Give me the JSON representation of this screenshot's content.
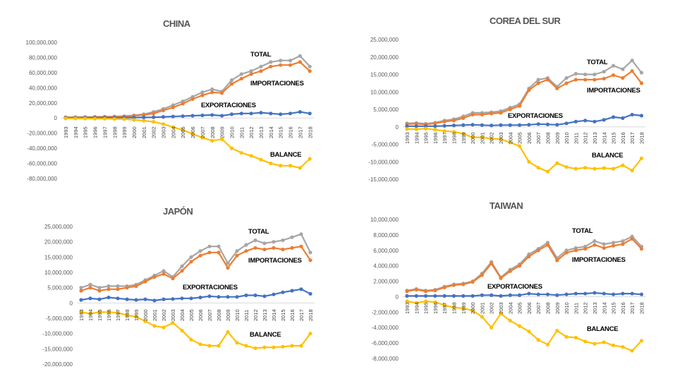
{
  "colors": {
    "total": "#a6a6a6",
    "importaciones": "#ed7d31",
    "exportaciones": "#4472c4",
    "balance": "#ffc000",
    "axis": "#d9d9d9"
  },
  "chart_data": [
    {
      "type": "line",
      "title": "CHINA",
      "x": [
        "1993",
        "1994",
        "1995",
        "1996",
        "1997",
        "1998",
        "1999",
        "2000",
        "2001",
        "2002",
        "2003",
        "2004",
        "2005",
        "2006",
        "2007",
        "2008",
        "2009",
        "2010",
        "2011",
        "2012",
        "2013",
        "2014",
        "2015",
        "2016",
        "2017",
        "2018"
      ],
      "yticks": [
        100000000,
        80000000,
        60000000,
        40000000,
        20000000,
        0,
        -20000000,
        -40000000,
        -60000000,
        -80000000
      ],
      "ytick_labels": [
        "100,000,000",
        "80,000,000",
        "60,000,000",
        "40,000,000",
        "20,000,000",
        "0",
        "-20,000,000",
        "-40,000,000",
        "-60,000,000",
        "-80,000,000"
      ],
      "ylim": [
        -80000000,
        100000000
      ],
      "series": [
        {
          "key": "total",
          "name": "TOTAL",
          "values": [
            1000000,
            1100000,
            1300000,
            1500000,
            1800000,
            2000000,
            2500000,
            3500000,
            5000000,
            8000000,
            12000000,
            17000000,
            22000000,
            28000000,
            34000000,
            38000000,
            35000000,
            50000000,
            58000000,
            62000000,
            68000000,
            74000000,
            76000000,
            76000000,
            82000000,
            68000000
          ]
        },
        {
          "key": "importaciones",
          "name": "IMPORTACIONES",
          "values": [
            800000,
            900000,
            1000000,
            1200000,
            1400000,
            1600000,
            2000000,
            3000000,
            4000000,
            6000000,
            10000000,
            14000000,
            19000000,
            25000000,
            30000000,
            34000000,
            33000000,
            45000000,
            52000000,
            58000000,
            62000000,
            68000000,
            70000000,
            70000000,
            74000000,
            62000000
          ]
        },
        {
          "key": "exportaciones",
          "name": "EXPORTACIONES",
          "values": [
            200000,
            200000,
            300000,
            300000,
            400000,
            400000,
            500000,
            600000,
            800000,
            1000000,
            1500000,
            2000000,
            2500000,
            3000000,
            3500000,
            4000000,
            3000000,
            5000000,
            6000000,
            6000000,
            7000000,
            6000000,
            5000000,
            6000000,
            8000000,
            6000000
          ]
        },
        {
          "key": "balance",
          "name": "BALANCE",
          "values": [
            -500000,
            -600000,
            -700000,
            -900000,
            -1000000,
            -1200000,
            -1500000,
            -2500000,
            -3500000,
            -5000000,
            -8000000,
            -12000000,
            -16000000,
            -21000000,
            -26000000,
            -30000000,
            -28000000,
            -40000000,
            -46000000,
            -50000000,
            -55000000,
            -60000000,
            -63000000,
            -63000000,
            -66000000,
            -54000000
          ]
        }
      ]
    },
    {
      "type": "line",
      "title": "COREA DEL SUR",
      "x": [
        "1993",
        "1994",
        "1995",
        "1996",
        "1997",
        "1998",
        "1999",
        "2000",
        "2001",
        "2002",
        "2003",
        "2004",
        "2005",
        "2006",
        "2007",
        "2008",
        "2009",
        "2010",
        "2011",
        "2012",
        "2013",
        "2014",
        "2015",
        "2016",
        "2017",
        "2018"
      ],
      "yticks": [
        25000000,
        20000000,
        15000000,
        10000000,
        5000000,
        0,
        -5000000,
        -10000000,
        -15000000
      ],
      "ytick_labels": [
        "25,000,000",
        "20,000,000",
        "15,000,000",
        "10,000,000",
        "5,000,000",
        "0",
        "-5,000,000",
        "-10,000,000",
        "-15,000,000"
      ],
      "ylim": [
        -15000000,
        25000000
      ],
      "series": [
        {
          "key": "total",
          "name": "TOTAL",
          "values": [
            1000000,
            1100000,
            900000,
            1200000,
            1800000,
            2200000,
            3000000,
            4000000,
            4000000,
            4200000,
            4500000,
            5500000,
            6500000,
            11000000,
            13500000,
            14000000,
            11500000,
            14000000,
            15200000,
            15000000,
            15000000,
            15800000,
            17500000,
            16500000,
            19000000,
            15500000
          ]
        },
        {
          "key": "importaciones",
          "name": "IMPORTACIONES",
          "values": [
            800000,
            900000,
            700000,
            1000000,
            1500000,
            1800000,
            2500000,
            3500000,
            3500000,
            3800000,
            4000000,
            5000000,
            6000000,
            10500000,
            12500000,
            13500000,
            11000000,
            12500000,
            13500000,
            13500000,
            13500000,
            13800000,
            14800000,
            14000000,
            16000000,
            12500000
          ]
        },
        {
          "key": "exportaciones",
          "name": "EXPORTACIONES",
          "values": [
            200000,
            200000,
            200000,
            200000,
            300000,
            400000,
            500000,
            600000,
            500000,
            400000,
            500000,
            500000,
            500000,
            600000,
            800000,
            700000,
            600000,
            1000000,
            1500000,
            1800000,
            1500000,
            2000000,
            2800000,
            2500000,
            3500000,
            3200000
          ]
        },
        {
          "key": "balance",
          "name": "BALANCE",
          "values": [
            -600000,
            -700000,
            -500000,
            -800000,
            -1200000,
            -1400000,
            -2000000,
            -3000000,
            -3000000,
            -3400000,
            -3500000,
            -4500000,
            -5500000,
            -10000000,
            -11700000,
            -12800000,
            -10400000,
            -11500000,
            -12000000,
            -11700000,
            -12000000,
            -11800000,
            -12000000,
            -11000000,
            -12500000,
            -9000000
          ]
        }
      ]
    },
    {
      "type": "line",
      "title": "JAPÓN",
      "x": [
        "1993",
        "1994",
        "1995",
        "1996",
        "1997",
        "1998",
        "1999",
        "2000",
        "2001",
        "2002",
        "2003",
        "2004",
        "2005",
        "2006",
        "2007",
        "2008",
        "2009",
        "2010",
        "2011",
        "2012",
        "2013",
        "2014",
        "2015",
        "2016",
        "2017",
        "2018"
      ],
      "yticks": [
        25000000,
        20000000,
        15000000,
        10000000,
        5000000,
        0,
        -5000000,
        -10000000,
        -15000000,
        -20000000
      ],
      "ytick_labels": [
        "25,000,000",
        "20,000,000",
        "15,000,000",
        "10,000,000",
        "5,000,000",
        "0",
        "-5,000,000",
        "-10,000,000",
        "-15,000,000",
        "-20,000,000"
      ],
      "ylim": [
        -20000000,
        25000000
      ],
      "series": [
        {
          "key": "total",
          "name": "TOTAL",
          "values": [
            5000000,
            6000000,
            5000000,
            5500000,
            5500000,
            5500000,
            6000000,
            7500000,
            9000000,
            10500000,
            8500000,
            12000000,
            15000000,
            17000000,
            18500000,
            18500000,
            13000000,
            17000000,
            19000000,
            20500000,
            19500000,
            20000000,
            20500000,
            21500000,
            22500000,
            16500000
          ]
        },
        {
          "key": "importaciones",
          "name": "IMPORTACIONES",
          "values": [
            4000000,
            5000000,
            4000000,
            4500000,
            4500000,
            5000000,
            5500000,
            7000000,
            8500000,
            9500000,
            8000000,
            10500000,
            13500000,
            15500000,
            16500000,
            16500000,
            11500000,
            15500000,
            17000000,
            18000000,
            17500000,
            18000000,
            17500000,
            18000000,
            18500000,
            14000000
          ]
        },
        {
          "key": "exportaciones",
          "name": "EXPORTACIONES",
          "values": [
            1000000,
            1500000,
            1200000,
            1800000,
            1500000,
            1200000,
            1000000,
            1200000,
            800000,
            1200000,
            1300000,
            1500000,
            1500000,
            1800000,
            2200000,
            2000000,
            2000000,
            2000000,
            2500000,
            2500000,
            2200000,
            2800000,
            3500000,
            4000000,
            4500000,
            3000000
          ]
        },
        {
          "key": "balance",
          "name": "BALANCE",
          "values": [
            -3000000,
            -3500000,
            -3000000,
            -3000000,
            -3200000,
            -4000000,
            -4500000,
            -6000000,
            -7500000,
            -8000000,
            -6500000,
            -9000000,
            -12000000,
            -13500000,
            -14000000,
            -14000000,
            -9500000,
            -13000000,
            -14000000,
            -14800000,
            -14500000,
            -14500000,
            -14300000,
            -14000000,
            -14000000,
            -10000000
          ]
        }
      ]
    },
    {
      "type": "line",
      "title": "TAIWAN",
      "x": [
        "1993",
        "1994",
        "1995",
        "1996",
        "1997",
        "1998",
        "1999",
        "2000",
        "2001",
        "2002",
        "2003",
        "2004",
        "2005",
        "2006",
        "2007",
        "2008",
        "2009",
        "2010",
        "2011",
        "2012",
        "2013",
        "2014",
        "2015",
        "2016",
        "2017",
        "2018"
      ],
      "yticks": [
        10000000,
        8000000,
        6000000,
        4000000,
        2000000,
        0,
        -2000000,
        -4000000,
        -6000000,
        -8000000
      ],
      "ytick_labels": [
        "10,000,000",
        "8,000,000",
        "6,000,000",
        "4,000,000",
        "2,000,000",
        "0",
        "-2,000,000",
        "-4,000,000",
        "-6,000,000",
        "-8,000,000"
      ],
      "ylim": [
        -8000000,
        10000000
      ],
      "series": [
        {
          "key": "total",
          "name": "TOTAL",
          "values": [
            800000,
            1000000,
            800000,
            900000,
            1300000,
            1600000,
            1700000,
            2000000,
            3000000,
            4500000,
            2500000,
            3500000,
            4200000,
            5500000,
            6200000,
            7000000,
            5000000,
            6000000,
            6300000,
            6500000,
            7200000,
            6800000,
            7000000,
            7200000,
            7800000,
            6500000
          ]
        },
        {
          "key": "importaciones",
          "name": "IMPORTACIONES",
          "values": [
            700000,
            900000,
            700000,
            800000,
            1200000,
            1500000,
            1600000,
            1900000,
            2800000,
            4300000,
            2400000,
            3300000,
            4000000,
            5200000,
            6000000,
            6700000,
            4700000,
            5700000,
            6000000,
            6200000,
            6700000,
            6300000,
            6600000,
            6800000,
            7500000,
            6200000
          ]
        },
        {
          "key": "exportaciones",
          "name": "EXPORTACIONES",
          "values": [
            100000,
            100000,
            100000,
            100000,
            100000,
            100000,
            100000,
            100000,
            200000,
            200000,
            100000,
            200000,
            200000,
            400000,
            300000,
            300000,
            200000,
            300000,
            400000,
            400000,
            500000,
            400000,
            300000,
            400000,
            400000,
            300000
          ]
        },
        {
          "key": "balance",
          "name": "BALANCE",
          "values": [
            -600000,
            -800000,
            -600000,
            -700000,
            -1100000,
            -1400000,
            -1500000,
            -1800000,
            -2600000,
            -4000000,
            -2200000,
            -3100000,
            -3800000,
            -4500000,
            -5600000,
            -6200000,
            -4400000,
            -5200000,
            -5300000,
            -5800000,
            -6100000,
            -5900000,
            -6300000,
            -6500000,
            -7000000,
            -5700000
          ]
        }
      ]
    }
  ]
}
